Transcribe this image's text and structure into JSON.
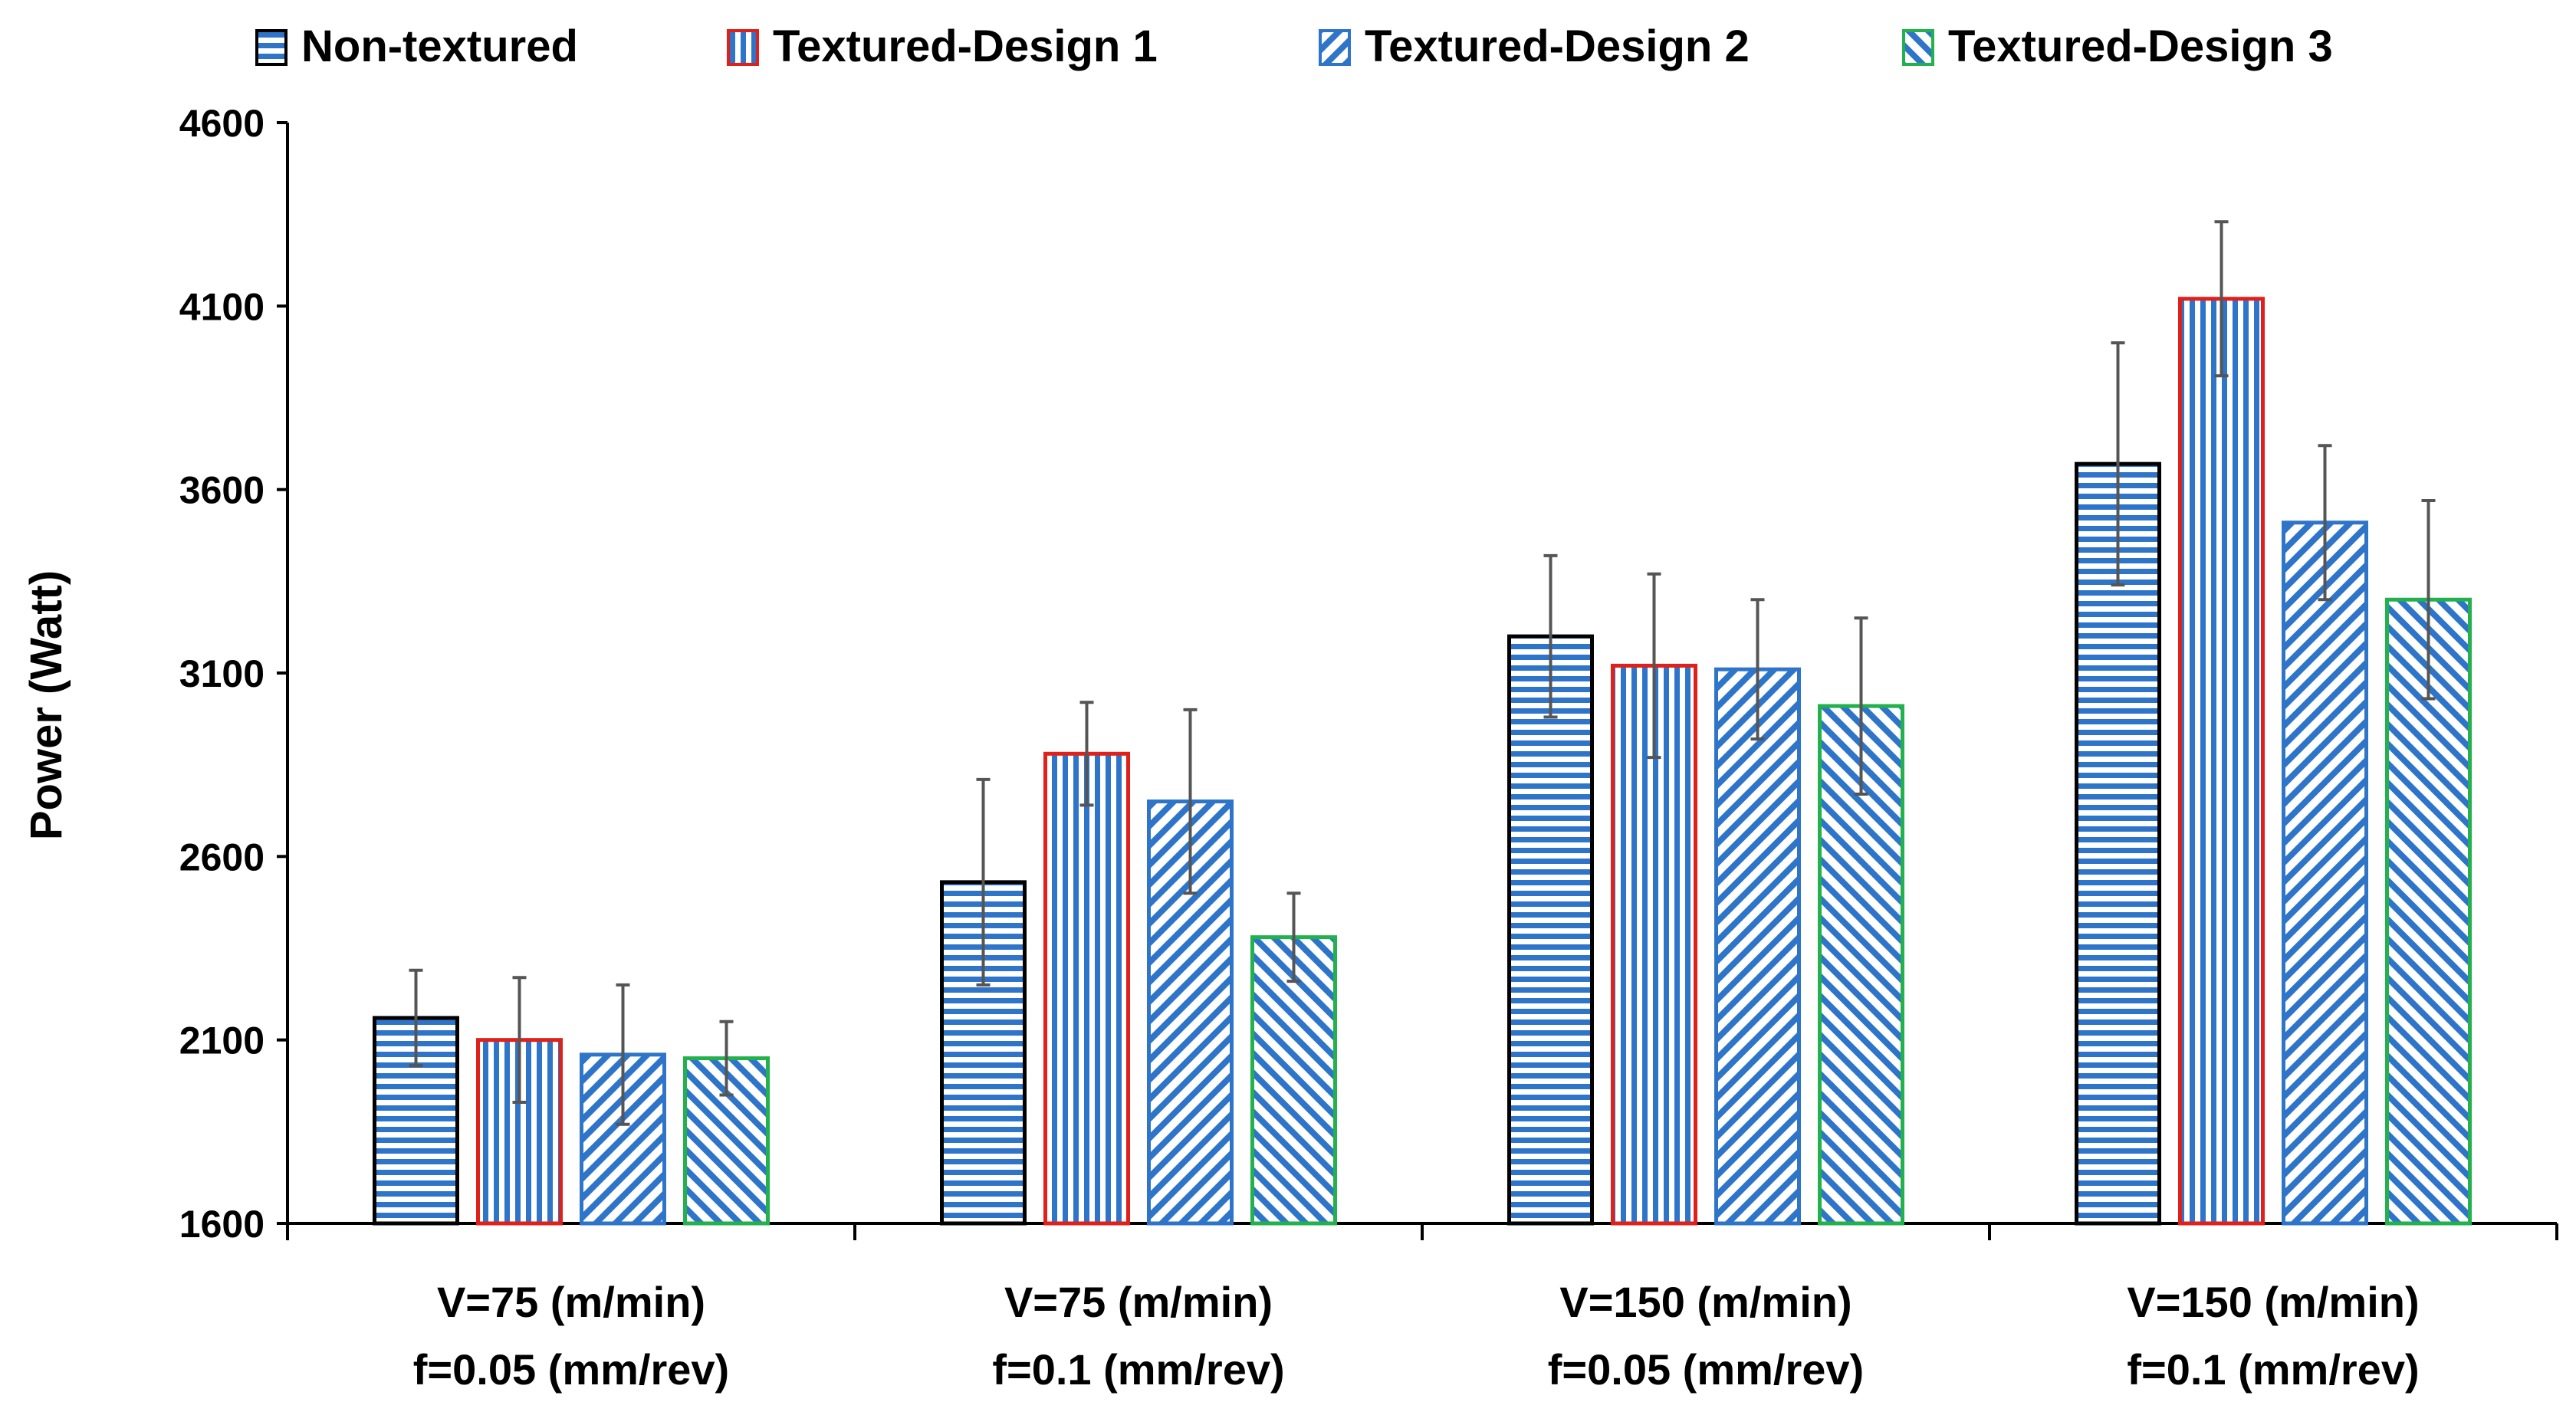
{
  "chart_data": {
    "type": "bar",
    "title": "",
    "xlabel": "",
    "ylabel": "Power (Watt)",
    "ylim": [
      1600,
      4600
    ],
    "yticks": [
      1600,
      2100,
      2600,
      3100,
      3600,
      4100,
      4600
    ],
    "grid": false,
    "legend_position": "top",
    "categories": [
      [
        "V=75 (m/min)",
        "f=0.05 (mm/rev)"
      ],
      [
        "V=75 (m/min)",
        "f=0.1 (mm/rev)"
      ],
      [
        "V=150 (m/min)",
        "f=0.05 (mm/rev)"
      ],
      [
        "V=150 (m/min)",
        "f=0.1 (mm/rev)"
      ]
    ],
    "series": [
      {
        "name": "Non-textured",
        "pattern": "horizontal-lines",
        "fill_color": "#2E75C9",
        "border_color": "#000000",
        "values": [
          2160,
          2530,
          3200,
          3670
        ],
        "error": [
          130,
          280,
          220,
          330
        ]
      },
      {
        "name": "Textured-Design 1",
        "pattern": "vertical-lines",
        "fill_color": "#2E75C9",
        "border_color": "#E0201B",
        "values": [
          2100,
          2880,
          3120,
          4120
        ],
        "error": [
          170,
          140,
          250,
          210
        ]
      },
      {
        "name": "Textured-Design 2",
        "pattern": "diagonal-down",
        "fill_color": "#2E75C9",
        "border_color": "#2E75C9",
        "values": [
          2060,
          2750,
          3110,
          3510
        ],
        "error": [
          190,
          250,
          190,
          210
        ]
      },
      {
        "name": "Textured-Design 3",
        "pattern": "diagonal-up",
        "fill_color": "#2E75C9",
        "border_color": "#22B14C",
        "values": [
          2050,
          2380,
          3010,
          3300
        ],
        "error": [
          100,
          120,
          240,
          270
        ]
      }
    ],
    "errorbar_color": "#555555"
  }
}
